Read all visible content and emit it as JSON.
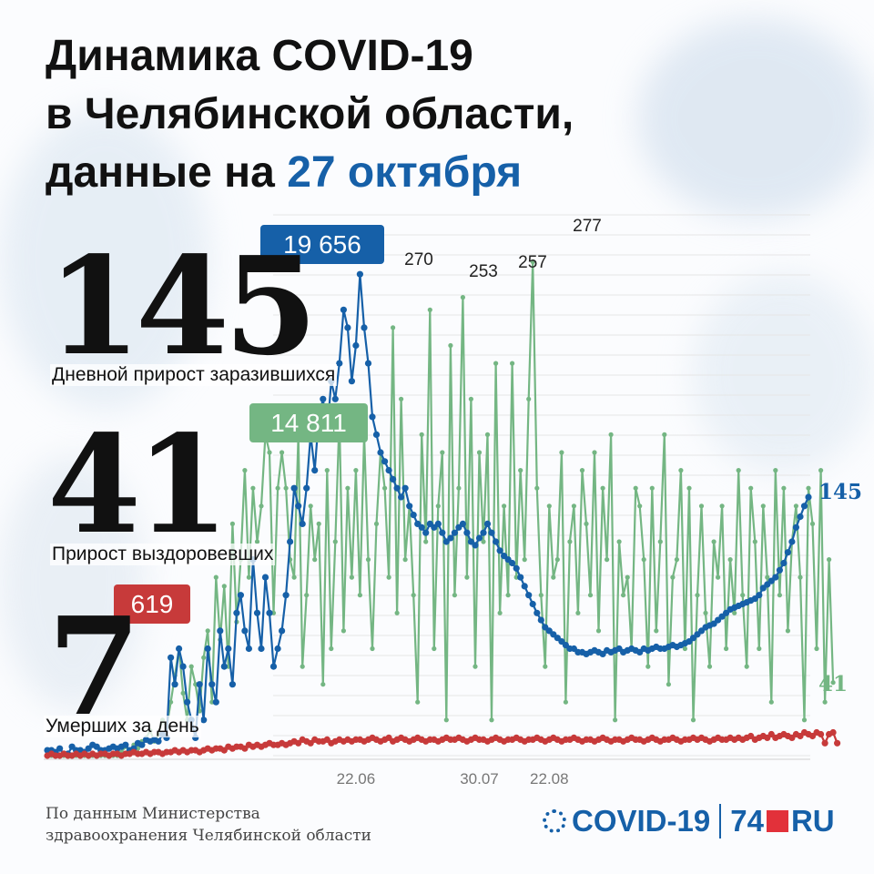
{
  "header": {
    "line1": "Динамика COVID-19",
    "line2": "в Челябинской области,",
    "line3_prefix": "данные на ",
    "line3_date": "27 октября"
  },
  "stats": {
    "infected_value": "145",
    "infected_label": "Дневной прирост заразившихся",
    "recovered_value": "41",
    "recovered_label": "Прирост выздоровевших",
    "deaths_value": "7",
    "deaths_label": "Умерших за день"
  },
  "callouts": {
    "infected_total": "19 656",
    "recovered_total": "14 811",
    "deaths_total": "619"
  },
  "peaks": [
    "270",
    "253",
    "257",
    "277"
  ],
  "end_labels": {
    "infected": "145",
    "recovered": "41"
  },
  "date_ticks": [
    "22.06",
    "30.07",
    "22.08"
  ],
  "source": {
    "line1": "По данным Министерства",
    "line2": "здравоохранения Челябинской области"
  },
  "logo": {
    "left": "COVID-19",
    "right_num": "74",
    "right_tld": "RU"
  },
  "colors": {
    "infected": "#1660a8",
    "recovered": "#74b683",
    "deaths": "#c73a3a",
    "title_accent": "#1660a8",
    "background": "#fbfcfe"
  },
  "chart_data": {
    "type": "line",
    "title": "Динамика COVID-19 в Челябинской области, данные на 27 октября",
    "xlabel": "",
    "ylabel": "",
    "x_ticks": [
      "22.06",
      "30.07",
      "22.08"
    ],
    "grid": true,
    "ylim": [
      0,
      290
    ],
    "series": [
      {
        "name": "Дневной прирост заразившихся",
        "color": "#1660a8",
        "values": [
          3,
          3,
          2,
          4,
          1,
          1,
          5,
          3,
          3,
          2,
          4,
          6,
          5,
          3,
          3,
          4,
          5,
          4,
          5,
          6,
          3,
          4,
          7,
          6,
          9,
          8,
          9,
          8,
          12,
          10,
          55,
          40,
          60,
          50,
          30,
          20,
          10,
          40,
          20,
          60,
          40,
          30,
          70,
          50,
          60,
          40,
          80,
          90,
          70,
          60,
          110,
          80,
          60,
          100,
          80,
          50,
          60,
          70,
          90,
          120,
          150,
          140,
          130,
          150,
          180,
          160,
          190,
          200,
          180,
          210,
          200,
          220,
          250,
          240,
          210,
          230,
          270,
          240,
          220,
          190,
          180,
          170,
          165,
          160,
          155,
          150,
          145,
          150,
          140,
          135,
          130,
          128,
          125,
          130,
          128,
          130,
          125,
          120,
          122,
          125,
          128,
          130,
          125,
          120,
          118,
          122,
          125,
          130,
          125,
          120,
          115,
          112,
          110,
          108,
          105,
          100,
          95,
          90,
          85,
          80,
          76,
          72,
          70,
          68,
          66,
          64,
          62,
          60,
          60,
          58,
          58,
          57,
          58,
          59,
          58,
          57,
          59,
          58,
          59,
          60,
          58,
          59,
          60,
          59,
          58,
          60,
          59,
          60,
          61,
          60,
          60,
          61,
          62,
          61,
          62,
          63,
          64,
          66,
          68,
          70,
          72,
          73,
          74,
          76,
          78,
          80,
          82,
          83,
          84,
          85,
          86,
          87,
          88,
          90,
          94,
          96,
          98,
          100,
          104,
          108,
          114,
          120,
          128,
          134,
          140,
          145
        ]
      },
      {
        "name": "Прирост выздоровевших",
        "color": "#74b683",
        "values": [
          0,
          0,
          0,
          0,
          0,
          0,
          0,
          0,
          0,
          0,
          0,
          0,
          0,
          0,
          0,
          0,
          0,
          0,
          2,
          5,
          3,
          6,
          4,
          8,
          10,
          14,
          8,
          12,
          20,
          16,
          30,
          45,
          60,
          35,
          20,
          50,
          40,
          25,
          55,
          70,
          30,
          100,
          65,
          95,
          50,
          130,
          75,
          110,
          160,
          100,
          150,
          120,
          140,
          180,
          170,
          80,
          150,
          170,
          150,
          110,
          100,
          180,
          50,
          90,
          140,
          110,
          130,
          40,
          160,
          60,
          120,
          190,
          70,
          150,
          100,
          160,
          90,
          180,
          110,
          60,
          130,
          170,
          150,
          100,
          240,
          80,
          200,
          110,
          140,
          90,
          30,
          180,
          120,
          250,
          60,
          140,
          170,
          20,
          230,
          90,
          150,
          257,
          100,
          200,
          50,
          170,
          120,
          180,
          20,
          220,
          80,
          140,
          90,
          220,
          100,
          160,
          110,
          200,
          277,
          150,
          90,
          50,
          140,
          100,
          110,
          170,
          30,
          120,
          140,
          80,
          160,
          130,
          90,
          170,
          70,
          150,
          110,
          180,
          20,
          120,
          90,
          100,
          60,
          150,
          140,
          110,
          50,
          150,
          70,
          120,
          180,
          40,
          100,
          110,
          160,
          60,
          150,
          20,
          90,
          140,
          80,
          50,
          120,
          100,
          140,
          60,
          110,
          80,
          160,
          90,
          50,
          150,
          120,
          60,
          140,
          100,
          30,
          160,
          90,
          150,
          70,
          120,
          140,
          100,
          20,
          150,
          130,
          60,
          160,
          30,
          110,
          41
        ]
      },
      {
        "name": "Умерших за день",
        "color": "#c73a3a",
        "values": [
          0,
          1,
          0,
          0,
          1,
          0,
          0,
          1,
          0,
          1,
          0,
          1,
          0,
          1,
          1,
          0,
          1,
          1,
          0,
          1,
          1,
          2,
          1,
          1,
          2,
          1,
          2,
          2,
          1,
          2,
          2,
          3,
          2,
          3,
          2,
          3,
          3,
          2,
          3,
          4,
          3,
          4,
          4,
          3,
          5,
          4,
          5,
          5,
          4,
          6,
          5,
          6,
          5,
          6,
          7,
          6,
          6,
          7,
          6,
          7,
          8,
          7,
          9,
          8,
          7,
          9,
          8,
          8,
          9,
          7,
          8,
          9,
          8,
          9,
          8,
          9,
          9,
          8,
          9,
          10,
          9,
          8,
          9,
          10,
          8,
          9,
          10,
          9,
          8,
          9,
          10,
          9,
          8,
          9,
          9,
          8,
          9,
          10,
          9,
          9,
          10,
          9,
          8,
          9,
          10,
          9,
          9,
          8,
          9,
          10,
          9,
          8,
          9,
          9,
          10,
          9,
          8,
          9,
          9,
          10,
          9,
          8,
          9,
          10,
          9,
          8,
          9,
          9,
          10,
          9,
          8,
          9,
          9,
          8,
          9,
          10,
          9,
          8,
          9,
          9,
          8,
          9,
          10,
          9,
          9,
          8,
          9,
          10,
          9,
          8,
          9,
          9,
          10,
          9,
          8,
          9,
          9,
          10,
          9,
          10,
          9,
          8,
          9,
          10,
          9,
          9,
          10,
          9,
          10,
          9,
          10,
          11,
          9,
          10,
          11,
          10,
          12,
          10,
          11,
          12,
          11,
          10,
          12,
          11,
          13,
          12,
          11,
          13,
          12,
          7,
          12,
          13,
          7
        ]
      }
    ]
  }
}
